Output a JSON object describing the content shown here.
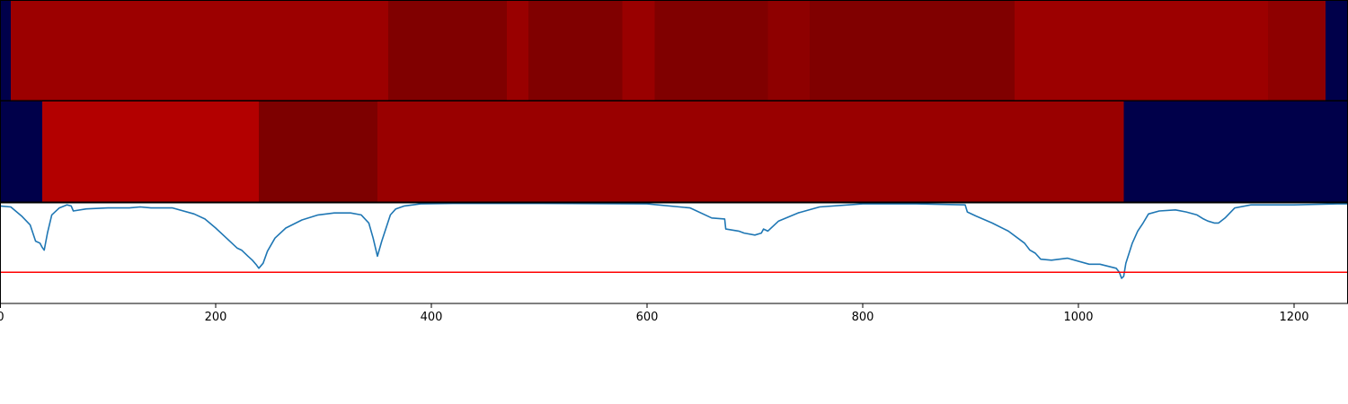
{
  "colors": {
    "segment_colors": [
      "#00004a",
      "#9c0000",
      "#800000",
      "#990000",
      "#b30000",
      "#7d0000",
      "#8e0000"
    ],
    "line": "#1f77b4",
    "threshold_line": "#ff0000",
    "frame": "#000000"
  },
  "chart_data": [
    {
      "type": "heatmap",
      "title": "",
      "xlim": [
        0,
        1250
      ],
      "segments": [
        {
          "start": 0,
          "end": 10,
          "color": "#00004a"
        },
        {
          "start": 10,
          "end": 360,
          "color": "#9c0000"
        },
        {
          "start": 360,
          "end": 470,
          "color": "#800000"
        },
        {
          "start": 470,
          "end": 490,
          "color": "#990000"
        },
        {
          "start": 490,
          "end": 577,
          "color": "#800000"
        },
        {
          "start": 577,
          "end": 607,
          "color": "#990000"
        },
        {
          "start": 607,
          "end": 712,
          "color": "#800000"
        },
        {
          "start": 712,
          "end": 751,
          "color": "#8e0000"
        },
        {
          "start": 751,
          "end": 941,
          "color": "#800000"
        },
        {
          "start": 941,
          "end": 1176,
          "color": "#9c0000"
        },
        {
          "start": 1176,
          "end": 1229,
          "color": "#8e0000"
        },
        {
          "start": 1229,
          "end": 1250,
          "color": "#00004a"
        }
      ]
    },
    {
      "type": "heatmap",
      "title": "",
      "xlim": [
        0,
        1250
      ],
      "segments": [
        {
          "start": 0,
          "end": 39,
          "color": "#00004a"
        },
        {
          "start": 39,
          "end": 240,
          "color": "#b30000"
        },
        {
          "start": 240,
          "end": 350,
          "color": "#7d0000"
        },
        {
          "start": 350,
          "end": 1042,
          "color": "#990000"
        },
        {
          "start": 1042,
          "end": 1250,
          "color": "#00004a"
        }
      ]
    },
    {
      "type": "line",
      "title": "",
      "xlabel": "",
      "ylabel": "",
      "xlim": [
        0,
        1250
      ],
      "ylim": [
        0,
        1
      ],
      "x_ticks": [
        0,
        200,
        400,
        600,
        800,
        1000,
        1200
      ],
      "x_tick_labels": [
        "0",
        "200",
        "400",
        "600",
        "800",
        "1000",
        "1200"
      ],
      "threshold": 0.31,
      "series": [
        {
          "x": [
            0,
            10,
            20,
            28,
            33,
            37,
            39,
            41,
            44,
            48,
            55,
            62,
            66,
            68,
            80,
            100,
            120,
            130,
            140,
            160,
            180,
            190,
            200,
            210,
            220,
            224,
            230,
            234,
            238,
            240,
            244,
            248,
            255,
            265,
            280,
            295,
            310,
            325,
            335,
            342,
            346,
            350,
            354,
            358,
            362,
            367,
            375,
            390,
            420,
            500,
            600,
            640,
            660,
            672,
            673,
            685,
            690,
            700,
            706,
            708,
            712,
            722,
            740,
            760,
            800,
            850,
            895,
            897,
            905,
            920,
            935,
            945,
            950,
            955,
            960,
            965,
            975,
            990,
            1010,
            1020,
            1035,
            1038,
            1040,
            1042,
            1044,
            1050,
            1055,
            1060,
            1065,
            1075,
            1090,
            1100,
            1110,
            1116,
            1120,
            1126,
            1130,
            1136,
            1145,
            1160,
            1180,
            1200,
            1240,
            1250
          ],
          "y": [
            0.97,
            0.96,
            0.87,
            0.78,
            0.62,
            0.6,
            0.56,
            0.53,
            0.7,
            0.88,
            0.95,
            0.98,
            0.97,
            0.92,
            0.94,
            0.95,
            0.95,
            0.96,
            0.95,
            0.95,
            0.89,
            0.84,
            0.75,
            0.65,
            0.55,
            0.53,
            0.47,
            0.43,
            0.38,
            0.35,
            0.4,
            0.52,
            0.65,
            0.75,
            0.83,
            0.88,
            0.9,
            0.9,
            0.88,
            0.8,
            0.65,
            0.47,
            0.62,
            0.75,
            0.88,
            0.94,
            0.97,
            0.99,
            0.995,
            0.995,
            0.99,
            0.95,
            0.85,
            0.84,
            0.74,
            0.72,
            0.7,
            0.68,
            0.7,
            0.74,
            0.72,
            0.82,
            0.9,
            0.96,
            0.99,
            0.99,
            0.98,
            0.91,
            0.87,
            0.8,
            0.72,
            0.64,
            0.6,
            0.53,
            0.5,
            0.44,
            0.43,
            0.45,
            0.39,
            0.39,
            0.35,
            0.31,
            0.25,
            0.27,
            0.4,
            0.6,
            0.72,
            0.8,
            0.89,
            0.92,
            0.93,
            0.91,
            0.88,
            0.84,
            0.82,
            0.8,
            0.8,
            0.85,
            0.95,
            0.98,
            0.98,
            0.98,
            0.99,
            0.99
          ]
        }
      ]
    }
  ]
}
